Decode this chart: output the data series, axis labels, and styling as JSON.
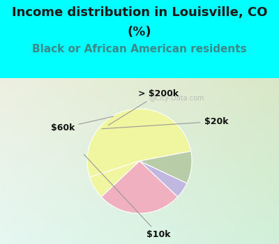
{
  "title_line1": "Income distribution in Louisville, CO",
  "title_line2": "(%)",
  "subtitle": "Black or African American residents",
  "slices": [
    {
      "label": "$10k",
      "value": 52,
      "color": "#f0f5a0"
    },
    {
      "label": "$20k",
      "value": 10,
      "color": "#b8cca8"
    },
    {
      "label": "> $200k",
      "value": 5,
      "color": "#c0b8e0"
    },
    {
      "label": "$60k",
      "value": 26,
      "color": "#f0b0c0"
    },
    {
      "label": "",
      "value": 7,
      "color": "#f0f5a0"
    }
  ],
  "title_color": "#1a1a1a",
  "subtitle_color": "#3a8a8a",
  "bg_cyan": "#00ffff",
  "watermark": "@City-Data.com",
  "label_fontsize": 9,
  "title_fontsize": 13,
  "subtitle_fontsize": 11,
  "startangle": 198
}
